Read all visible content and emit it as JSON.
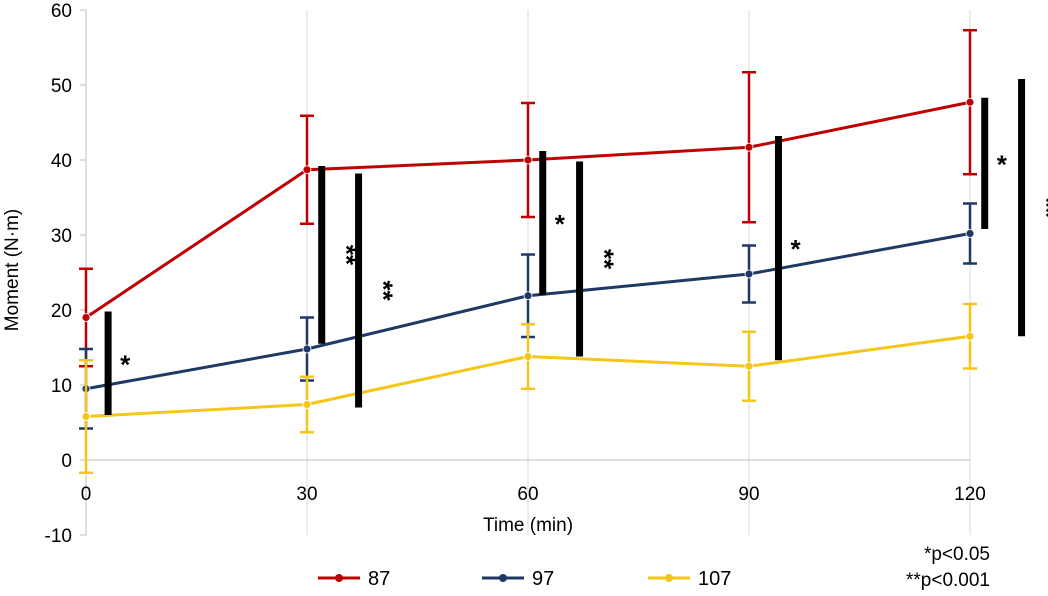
{
  "chart_data": {
    "type": "line",
    "xlabel": "Time (min)",
    "ylabel": "Moment (N·m)",
    "x": [
      0,
      30,
      60,
      90,
      120
    ],
    "xlim": [
      0,
      120
    ],
    "ylim": [
      -10,
      60
    ],
    "x_ticks": [
      "0",
      "30",
      "60",
      "90",
      "120"
    ],
    "y_ticks": [
      "-10",
      "0",
      "10",
      "20",
      "30",
      "40",
      "50",
      "60"
    ],
    "grid": "vertical",
    "legend_position": "bottom",
    "series": [
      {
        "name": "87",
        "color": "#c00000",
        "values": [
          19.0,
          38.7,
          40.0,
          41.7,
          47.7
        ],
        "error": [
          6.5,
          7.2,
          7.6,
          10.0,
          9.6
        ]
      },
      {
        "name": "97",
        "color": "#1f3864",
        "values": [
          9.5,
          14.8,
          21.9,
          24.8,
          30.2
        ],
        "error": [
          5.3,
          4.2,
          5.5,
          3.8,
          4.0
        ]
      },
      {
        "name": "107",
        "color": "#f5c518",
        "values": [
          5.8,
          7.4,
          13.8,
          12.5,
          16.5
        ],
        "error": [
          7.5,
          3.7,
          4.3,
          4.6,
          4.3
        ]
      }
    ],
    "significance": [
      {
        "x": 3,
        "y_range": [
          6.0,
          19.8
        ],
        "label": "*"
      },
      {
        "x": 32,
        "y_range": [
          15.5,
          39.2
        ],
        "label": "**"
      },
      {
        "x": 37,
        "y_range": [
          7.0,
          38.2
        ],
        "label": "**"
      },
      {
        "x": 62,
        "y_range": [
          22.0,
          41.2
        ],
        "label": "*"
      },
      {
        "x": 67,
        "y_range": [
          13.8,
          39.8
        ],
        "label": "**"
      },
      {
        "x": 94,
        "y_range": [
          13.3,
          43.2
        ],
        "label": "*"
      },
      {
        "x": 122,
        "y_range": [
          30.8,
          48.3
        ],
        "label": "*"
      },
      {
        "x": 127,
        "y_range": [
          16.5,
          50.8
        ],
        "label": "**"
      }
    ],
    "notes": [
      "*p<0.05",
      "**p<0.001"
    ]
  }
}
